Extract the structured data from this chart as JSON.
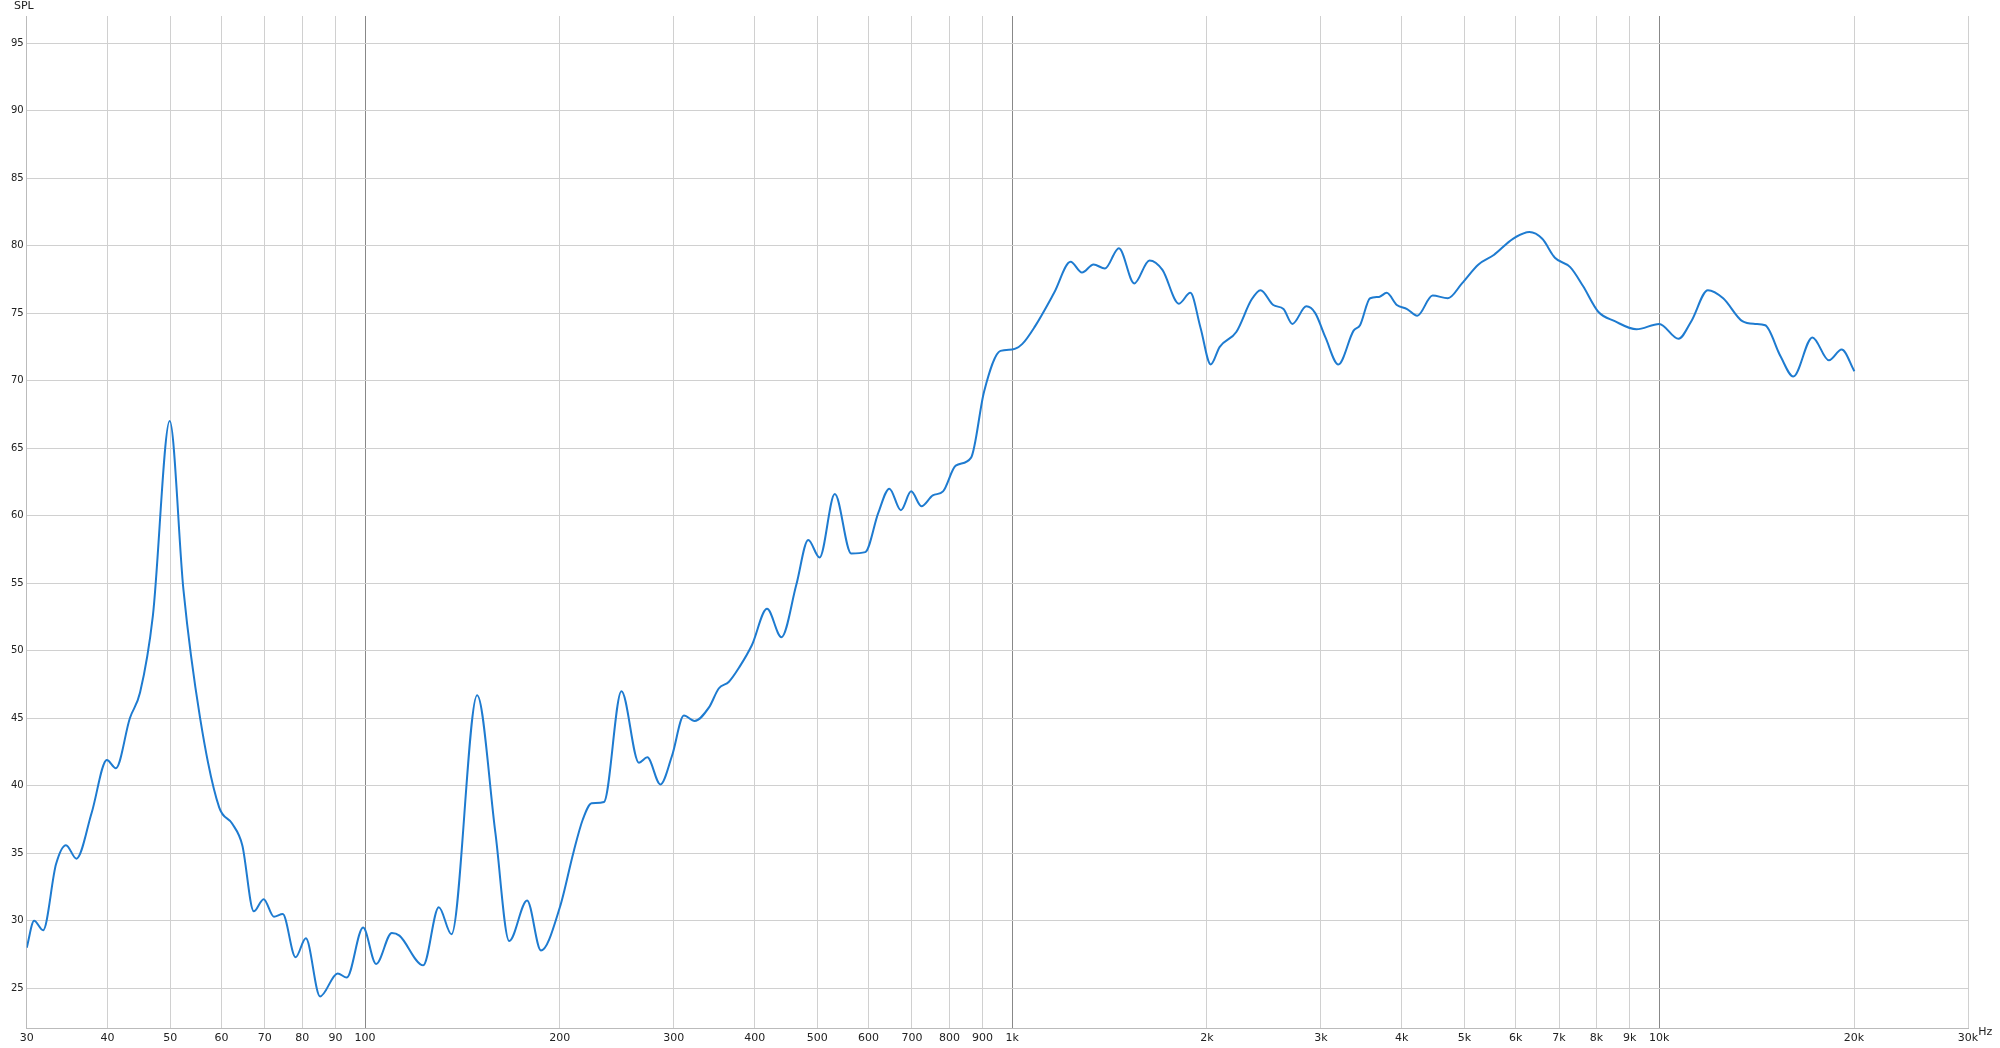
{
  "chart_data": {
    "type": "line",
    "ylabel": "SPL",
    "log": "x",
    "grid": true,
    "legend": false,
    "marker": "none",
    "line_style": "solid",
    "xlim": [
      30,
      30000
    ],
    "ylim": [
      22,
      97
    ],
    "xticks": [
      30,
      40,
      50,
      60,
      70,
      80,
      90,
      100,
      200,
      300,
      400,
      500,
      600,
      700,
      800,
      900,
      {
        "value": 1000,
        "label": "1k"
      },
      {
        "value": 2000,
        "label": "2k"
      },
      {
        "value": 3000,
        "label": "3k"
      },
      {
        "value": 4000,
        "label": "4k"
      },
      {
        "value": 5000,
        "label": "5k"
      },
      {
        "value": 6000,
        "label": "6k"
      },
      {
        "value": 7000,
        "label": "7k"
      },
      {
        "value": 8000,
        "label": "8k"
      },
      {
        "value": 9000,
        "label": "9k"
      },
      {
        "value": 10000,
        "label": "10k"
      },
      {
        "value": 20000,
        "label": "20k"
      },
      {
        "value": 30000,
        "label": "30k"
      }
    ],
    "xlabel": "Hz",
    "yticks": [
      25,
      30,
      35,
      40,
      45,
      50,
      55,
      60,
      65,
      70,
      75,
      80,
      85,
      90,
      95
    ],
    "series": [
      {
        "color": "#1e7bd0",
        "x": [
          30,
          30.8,
          31.8,
          33.3,
          34.5,
          35.8,
          37.8,
          39.9,
          41.2,
          43.3,
          44.9,
          47,
          49.9,
          52.4,
          55.6,
          59.5,
          62.3,
          64.6,
          67.3,
          69.7,
          72.3,
          74.6,
          78.1,
          81,
          85.2,
          90.7,
          93.7,
          99.3,
          104,
          110,
          113,
          123,
          130,
          136,
          149,
          159,
          167,
          178,
          187,
          200,
          210,
          217,
          224,
          234,
          249,
          265,
          273,
          286,
          298,
          311,
          323,
          340,
          352,
          365,
          379,
          396,
          418,
          440,
          464,
          484,
          504,
          532,
          564,
          593,
          621,
          646,
          673,
          698,
          724,
          754,
          782,
          818,
          864,
          905,
          959,
          1000,
          1036,
          1084,
          1161,
          1231,
          1282,
          1336,
          1391,
          1462,
          1544,
          1630,
          1707,
          1810,
          1885,
          1955,
          2027,
          2093,
          2220,
          2344,
          2420,
          2532,
          2626,
          2710,
          2849,
          2940,
          3049,
          3192,
          3370,
          3448,
          3574,
          3690,
          3791,
          3930,
          4076,
          4227,
          4464,
          4713,
          4956,
          5256,
          5550,
          5941,
          6300,
          6595,
          6898,
          7284,
          7624,
          8048,
          8537,
          9222,
          10000,
          10711,
          11208,
          11890,
          12553,
          13440,
          14064,
          14581,
          15396,
          16111,
          17244,
          18292,
          19137,
          20024
        ],
        "values": [
          28,
          30,
          29.3,
          34.2,
          35.6,
          34.6,
          38,
          41.9,
          41.3,
          45,
          46.9,
          52.6,
          67,
          54.5,
          45,
          38.4,
          37.2,
          35.6,
          30.7,
          31.6,
          30.3,
          30.5,
          27.3,
          28.7,
          24.4,
          26.1,
          25.8,
          29.5,
          26.8,
          29.1,
          28.9,
          26.7,
          31,
          29,
          46.7,
          36.5,
          28.5,
          31.5,
          27.8,
          31,
          35.1,
          37.5,
          38.7,
          38.8,
          47,
          41.7,
          42.1,
          40.1,
          42.2,
          45.2,
          44.8,
          45.8,
          47.2,
          47.7,
          48.8,
          50.4,
          53.1,
          51,
          54.9,
          58.2,
          56.9,
          61.6,
          57.2,
          57.3,
          60.2,
          62,
          60.4,
          61.8,
          60.7,
          61.5,
          61.8,
          63.7,
          64.3,
          69.2,
          72.2,
          72.3,
          72.7,
          74,
          76.5,
          78.8,
          78,
          78.6,
          78.3,
          79.8,
          77.2,
          78.9,
          78.2,
          75.7,
          76.5,
          73.9,
          71.2,
          72.5,
          73.6,
          76,
          76.7,
          75.6,
          75.3,
          74.2,
          75.5,
          75,
          73.2,
          71.2,
          73.7,
          74.1,
          76.1,
          76.2,
          76.5,
          75.6,
          75.3,
          74.8,
          76.3,
          76.1,
          77.2,
          78.6,
          79.3,
          80.5,
          81,
          80.5,
          79.1,
          78.4,
          77,
          75.1,
          74.4,
          73.8,
          74.2,
          73.1,
          74.4,
          76.7,
          76.1,
          74.4,
          74.2,
          74.1,
          71.8,
          70.3,
          73.2,
          71.5,
          72.3,
          70.7
        ]
      }
    ]
  }
}
